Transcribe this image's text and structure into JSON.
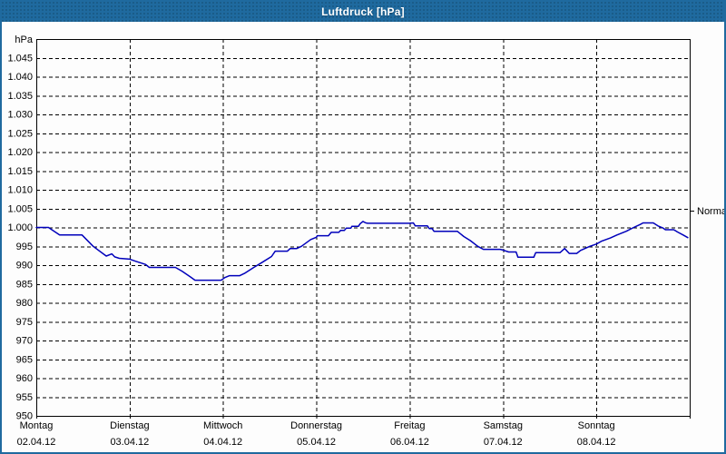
{
  "window": {
    "title": "Luftdruck [hPa]"
  },
  "colors": {
    "titlebar": "#1f6a9f",
    "window_border": "#1f6a9f",
    "background": "#fdfdfd",
    "grid": "#000000",
    "text": "#000000",
    "line": "#0000bb"
  },
  "chart_data": {
    "type": "line",
    "title": "Luftdruck [hPa]",
    "y_axis_unit_label": "hPa",
    "ylim": [
      950,
      1050
    ],
    "y_tick_step": 5,
    "y_tick_labels": [
      "1.045",
      "1.040",
      "1.035",
      "1.030",
      "1.025",
      "1.020",
      "1.015",
      "1.010",
      "1.005",
      "1.000",
      "995",
      "990",
      "985",
      "980",
      "975",
      "970",
      "965",
      "960",
      "955",
      "950"
    ],
    "grid": "dashed",
    "x_days": [
      {
        "name": "Montag",
        "date": "02.04.12"
      },
      {
        "name": "Dienstag",
        "date": "03.04.12"
      },
      {
        "name": "Mittwoch",
        "date": "04.04.12"
      },
      {
        "name": "Donnerstag",
        "date": "05.04.12"
      },
      {
        "name": "Freitag",
        "date": "06.04.12"
      },
      {
        "name": "Samstag",
        "date": "07.04.12"
      },
      {
        "name": "Sonntag",
        "date": "08.04.12"
      }
    ],
    "normal_marker": {
      "label": "Normal",
      "value_hpa": 1004.5
    },
    "series": [
      {
        "name": "Luftdruck",
        "color": "#0000bb",
        "x_unit": "days_since_monday_0204",
        "y_unit": "hPa",
        "points": [
          [
            0.0,
            1000.0
          ],
          [
            0.13,
            1000.0
          ],
          [
            0.25,
            998.0
          ],
          [
            0.49,
            998.0
          ],
          [
            0.61,
            995.0
          ],
          [
            0.75,
            992.4
          ],
          [
            0.81,
            993.0
          ],
          [
            0.84,
            992.2
          ],
          [
            0.89,
            991.8
          ],
          [
            1.0,
            991.6
          ],
          [
            1.07,
            991.0
          ],
          [
            1.17,
            990.2
          ],
          [
            1.21,
            989.4
          ],
          [
            1.49,
            989.4
          ],
          [
            1.56,
            988.4
          ],
          [
            1.65,
            986.9
          ],
          [
            1.7,
            986.0
          ],
          [
            1.98,
            986.0
          ],
          [
            2.02,
            986.7
          ],
          [
            2.07,
            987.2
          ],
          [
            2.18,
            987.2
          ],
          [
            2.23,
            987.8
          ],
          [
            2.33,
            989.4
          ],
          [
            2.43,
            990.9
          ],
          [
            2.52,
            992.3
          ],
          [
            2.56,
            993.7
          ],
          [
            2.69,
            993.7
          ],
          [
            2.72,
            994.4
          ],
          [
            2.79,
            994.4
          ],
          [
            2.84,
            995.0
          ],
          [
            2.94,
            996.8
          ],
          [
            3.0,
            997.4
          ],
          [
            3.01,
            997.8
          ],
          [
            3.13,
            997.8
          ],
          [
            3.16,
            998.7
          ],
          [
            3.24,
            998.7
          ],
          [
            3.26,
            999.2
          ],
          [
            3.3,
            999.2
          ],
          [
            3.32,
            999.8
          ],
          [
            3.37,
            999.8
          ],
          [
            3.38,
            1000.3
          ],
          [
            3.45,
            1000.3
          ],
          [
            3.47,
            1001.0
          ],
          [
            3.5,
            1001.6
          ],
          [
            3.53,
            1001.2
          ],
          [
            3.55,
            1001.1
          ],
          [
            4.0,
            1001.1
          ],
          [
            4.04,
            1001.2
          ],
          [
            4.06,
            1000.4
          ],
          [
            4.19,
            1000.4
          ],
          [
            4.21,
            999.7
          ],
          [
            4.24,
            999.7
          ],
          [
            4.26,
            999.0
          ],
          [
            4.51,
            999.0
          ],
          [
            4.58,
            997.6
          ],
          [
            4.65,
            996.5
          ],
          [
            4.73,
            995.0
          ],
          [
            4.79,
            994.2
          ],
          [
            4.97,
            994.2
          ],
          [
            5.0,
            994.0
          ],
          [
            5.06,
            993.5
          ],
          [
            5.14,
            993.5
          ],
          [
            5.16,
            992.1
          ],
          [
            5.33,
            992.1
          ],
          [
            5.35,
            993.3
          ],
          [
            5.61,
            993.3
          ],
          [
            5.66,
            994.4
          ],
          [
            5.71,
            993.1
          ],
          [
            5.79,
            993.1
          ],
          [
            5.83,
            993.9
          ],
          [
            5.93,
            995.0
          ],
          [
            6.0,
            995.6
          ],
          [
            6.06,
            996.4
          ],
          [
            6.15,
            997.2
          ],
          [
            6.22,
            998.0
          ],
          [
            6.32,
            999.0
          ],
          [
            6.4,
            1000.0
          ],
          [
            6.47,
            1000.8
          ],
          [
            6.5,
            1001.2
          ],
          [
            6.61,
            1001.2
          ],
          [
            6.66,
            1000.4
          ],
          [
            6.71,
            999.9
          ],
          [
            6.74,
            999.4
          ],
          [
            6.83,
            999.4
          ],
          [
            6.87,
            998.8
          ],
          [
            6.93,
            998.0
          ],
          [
            6.98,
            997.3
          ]
        ]
      }
    ]
  }
}
